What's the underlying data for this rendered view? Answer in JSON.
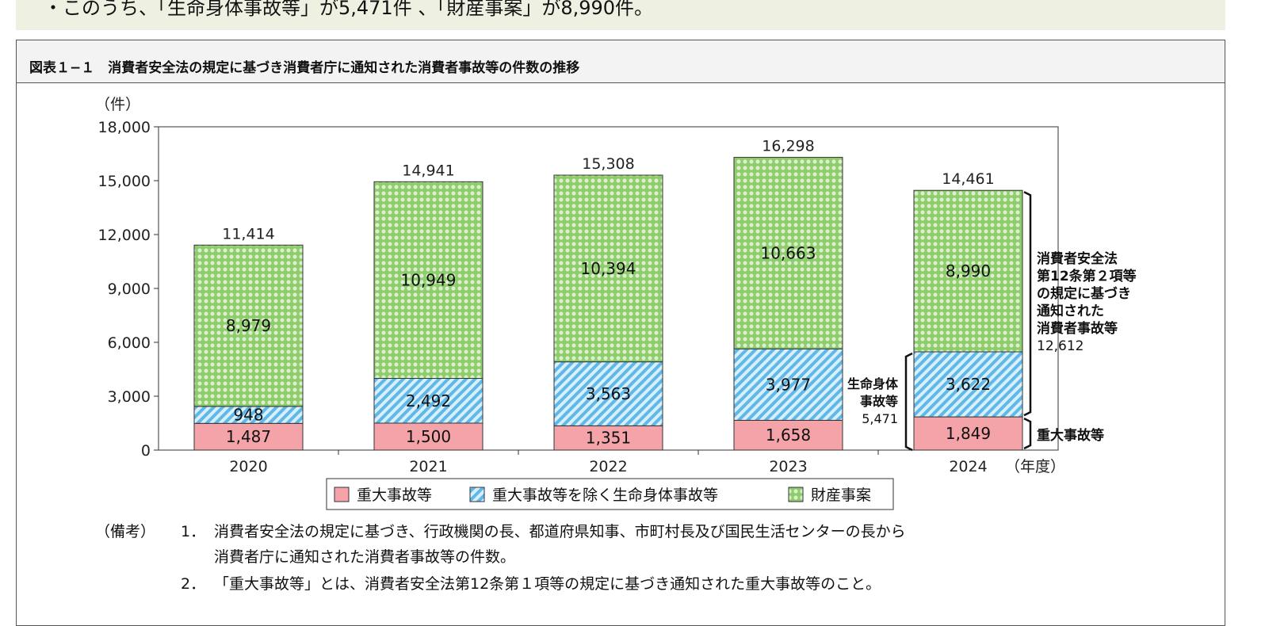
{
  "summary": "・このうち、「生命身体事故等」が5,471件 、「財産事案」が8,990件。",
  "figure_title": "図表１−１　消費者安全法の規定に基づき消費者庁に通知された消費者事故等の件数の推移",
  "chart_data": {
    "type": "bar",
    "stacked": true,
    "ylabel": "（件）",
    "xlabel_suffix": "（年度）",
    "categories": [
      "2020",
      "2021",
      "2022",
      "2023",
      "2024"
    ],
    "ylim": [
      0,
      18000
    ],
    "yticks": [
      "0",
      "3,000",
      "6,000",
      "9,000",
      "12,000",
      "15,000",
      "18,000"
    ],
    "series": [
      {
        "name": "重大事故等",
        "values": [
          1487,
          1500,
          1351,
          1658,
          1849
        ],
        "labels": [
          "1,487",
          "1,500",
          "1,351",
          "1,658",
          "1,849"
        ],
        "color": "#f4a3a8",
        "pattern": "solid"
      },
      {
        "name": "重大事故等を除く生命身体事故等",
        "values": [
          948,
          2492,
          3563,
          3977,
          3622
        ],
        "labels": [
          "948",
          "2,492",
          "3,563",
          "3,977",
          "3,622"
        ],
        "color": "#7ec8ee",
        "pattern": "diagonal"
      },
      {
        "name": "財産事案",
        "values": [
          8979,
          10949,
          10394,
          10663,
          8990
        ],
        "labels": [
          "8,979",
          "10,949",
          "10,394",
          "10,663",
          "8,990"
        ],
        "color": "#8fcc6e",
        "pattern": "checker"
      }
    ],
    "totals": [
      "11,414",
      "14,941",
      "15,308",
      "16,298",
      "14,461"
    ],
    "annotations": {
      "right_bracket": [
        "消費者安全法",
        "第12条第２項等",
        "の規定に基づき",
        "通知された",
        "消費者事故等",
        "12,612"
      ],
      "left_bracket": [
        "生命身体",
        "事故等",
        "5,471"
      ],
      "bottom_bracket": "重大事故等"
    },
    "grid": false,
    "legend_position": "bottom"
  },
  "notes": [
    {
      "label": "（備考）",
      "num": "1．",
      "text": "消費者安全法の規定に基づき、行政機関の長、都道府県知事、市町村長及び国民生活センターの長から"
    },
    {
      "label": "",
      "num": "",
      "text": "消費者庁に通知された消費者事故等の件数。"
    },
    {
      "label": "",
      "num": "2．",
      "text": "「重大事故等」とは、消費者安全法第12条第１項等の規定に基づき通知された重大事故等のこと。"
    }
  ]
}
